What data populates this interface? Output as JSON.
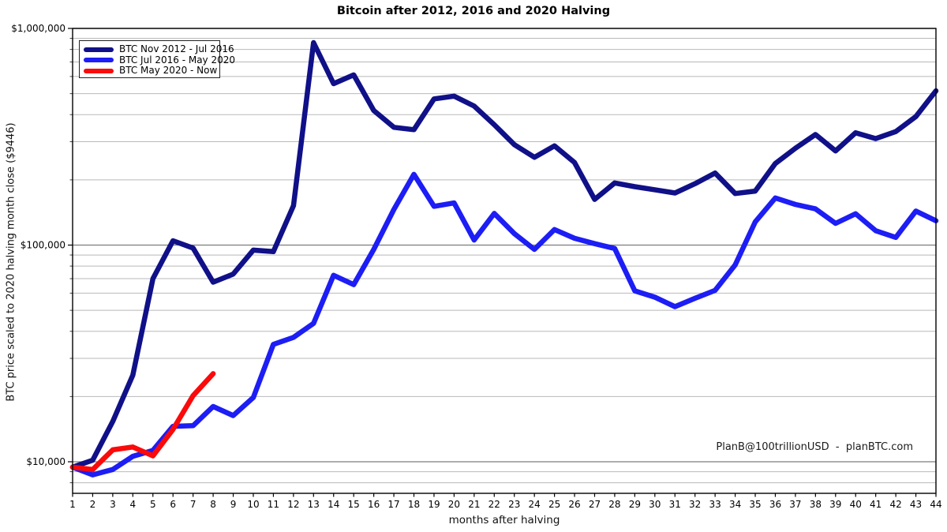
{
  "title": "Bitcoin after 2012, 2016 and 2020 Halving",
  "watermark": "PlanB@100trillionUSD  -  planBTC.com",
  "chart_data": {
    "type": "line",
    "title": "Bitcoin after 2012, 2016 and 2020 Halving",
    "xlabel": "months after halving",
    "ylabel": "BTC price scaled to 2020 halving month close ($9446)",
    "y_scale": "log",
    "ylim": [
      7150,
      1000000
    ],
    "xlim": [
      1,
      44
    ],
    "grid": "horizontal only, minor log gridlines on",
    "legend_position": "top-left",
    "x_ticks": [
      1,
      2,
      3,
      4,
      5,
      6,
      7,
      8,
      9,
      10,
      11,
      12,
      13,
      14,
      15,
      16,
      17,
      18,
      19,
      20,
      21,
      22,
      23,
      24,
      25,
      26,
      27,
      28,
      29,
      30,
      31,
      32,
      33,
      34,
      35,
      36,
      37,
      38,
      39,
      40,
      41,
      42,
      43,
      44
    ],
    "y_major_ticks": [
      {
        "value": 10000,
        "label": "$10,000"
      },
      {
        "value": 100000,
        "label": "$100,000"
      },
      {
        "value": 1000000,
        "label": "$1,000,000"
      }
    ],
    "y_minor_gridlines": [
      8000,
      9000,
      20000,
      30000,
      40000,
      50000,
      60000,
      70000,
      80000,
      90000,
      200000,
      300000,
      400000,
      500000,
      600000,
      700000,
      800000,
      900000
    ],
    "colors": {
      "series_2012": "#101088",
      "series_2016": "#1d1df5",
      "series_2020": "#fa0a0a",
      "minor_grid": "#b9b9b9",
      "major_grid": "#7d7d7d",
      "axis": "#000000"
    },
    "series": [
      {
        "name": "BTC Nov 2012 - Jul 2016",
        "color": "#101088",
        "x_start": 1,
        "values": [
          9446,
          10160,
          15350,
          25100,
          70000,
          104700,
          96900,
          67400,
          73500,
          94800,
          93300,
          152000,
          859700,
          555800,
          610000,
          418100,
          349700,
          341000,
          473000,
          487000,
          438000,
          359500,
          291000,
          254200,
          287000,
          240500,
          162500,
          193500,
          186000,
          180000,
          174000,
          192000,
          215000,
          173000,
          177500,
          238000,
          280000,
          324000,
          272000,
          330000,
          310000,
          334000,
          392000,
          515000
        ]
      },
      {
        "name": "BTC Jul 2016 - May 2020",
        "color": "#1d1df5",
        "x_start": 1,
        "values": [
          9446,
          8700,
          9210,
          10600,
          11280,
          14570,
          14670,
          17990,
          16330,
          19800,
          34800,
          37500,
          43500,
          72500,
          65700,
          95500,
          146000,
          212000,
          151000,
          156500,
          105500,
          140000,
          113000,
          95500,
          118000,
          107500,
          101500,
          96500,
          61500,
          57500,
          52000,
          56800,
          61800,
          81000,
          128000,
          165000,
          154000,
          147000,
          126000,
          139500,
          116500,
          108500,
          143500,
          129500
        ]
      },
      {
        "name": "BTC May 2020 - Now",
        "color": "#fa0a0a",
        "x_start": 1,
        "values": [
          9446,
          9200,
          11350,
          11700,
          10650,
          14100,
          20200,
          25500
        ]
      }
    ]
  }
}
